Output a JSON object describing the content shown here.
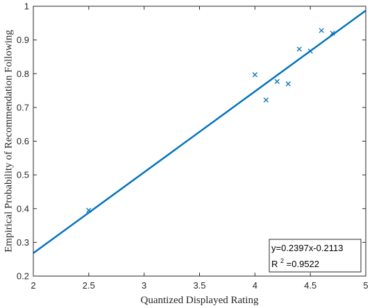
{
  "chart_data": {
    "type": "scatter",
    "xlabel": "Quantized Displayed Rating",
    "ylabel": "Empirical Probability of Recommendation Following",
    "xlim": [
      2,
      5
    ],
    "ylim": [
      0.2,
      1
    ],
    "xticks": [
      2,
      2.5,
      3,
      3.5,
      4,
      4.5,
      5
    ],
    "yticks": [
      0.2,
      0.3,
      0.4,
      0.5,
      0.6,
      0.7,
      0.8,
      0.9,
      1
    ],
    "xtick_labels": [
      "2",
      "2.5",
      "3",
      "3.5",
      "4",
      "4.5",
      "5"
    ],
    "ytick_labels": [
      "0.2",
      "0.3",
      "0.4",
      "0.5",
      "0.6",
      "0.7",
      "0.8",
      "0.9",
      "1"
    ],
    "grid": false,
    "points": [
      {
        "x": 2.5,
        "y": 0.395
      },
      {
        "x": 4.0,
        "y": 0.797
      },
      {
        "x": 4.1,
        "y": 0.722
      },
      {
        "x": 4.2,
        "y": 0.777
      },
      {
        "x": 4.3,
        "y": 0.77
      },
      {
        "x": 4.4,
        "y": 0.873
      },
      {
        "x": 4.5,
        "y": 0.867
      },
      {
        "x": 4.6,
        "y": 0.928
      },
      {
        "x": 4.7,
        "y": 0.92
      }
    ],
    "marker": "x",
    "fit": {
      "slope": 0.2397,
      "intercept": -0.2113
    },
    "annotation": {
      "equation": "y=0.2397x-0.2113",
      "r2_base": "R",
      "r2_sup": "2",
      "r2_value": "=0.9522",
      "placement": "bottom-right"
    },
    "colors": {
      "series": "#0072bd",
      "axes": "#262626"
    }
  }
}
